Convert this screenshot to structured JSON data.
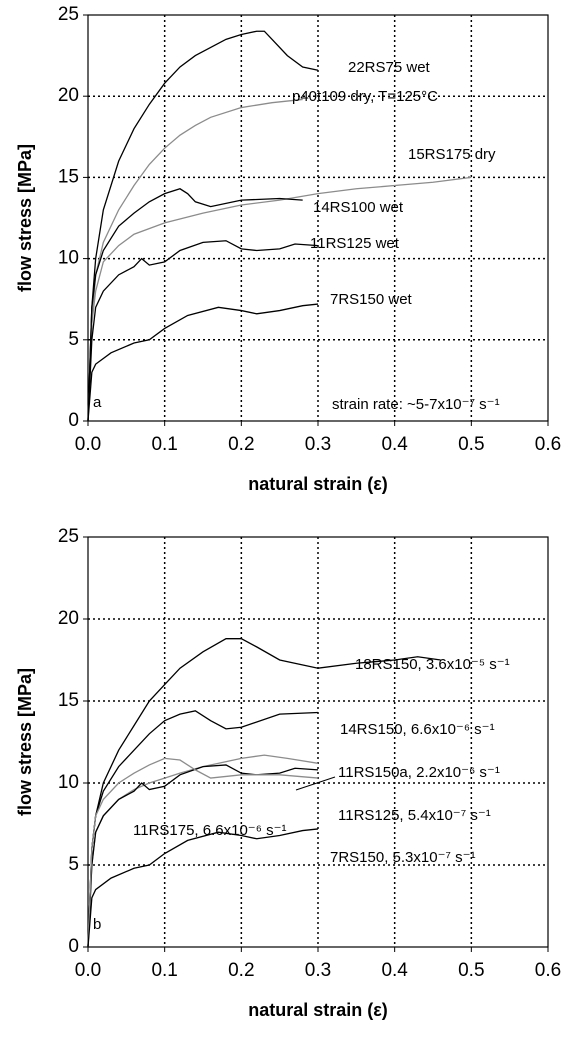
{
  "chart_data": [
    {
      "type": "line",
      "panel_label": "a",
      "annotation": "strain rate: ~5-7x10⁻⁷ s⁻¹",
      "x_label": "natural strain (ε)",
      "y_label": "flow stress [MPa]",
      "xlim": [
        0,
        0.6
      ],
      "ylim": [
        0,
        25
      ],
      "xticks": [
        {
          "value": 0,
          "label": "0.0"
        },
        0.1,
        0.2,
        0.3,
        0.4,
        0.5,
        0.6
      ],
      "yticks": [
        0,
        5,
        10,
        15,
        20,
        25
      ],
      "grid": true,
      "series": [
        {
          "name": "22RS75 wet",
          "color": "#000000",
          "x": [
            0,
            0.005,
            0.01,
            0.02,
            0.04,
            0.06,
            0.08,
            0.1,
            0.12,
            0.14,
            0.16,
            0.18,
            0.2,
            0.22,
            0.23,
            0.24,
            0.26,
            0.28,
            0.3
          ],
          "values": [
            0,
            7,
            10,
            13,
            16,
            18,
            19.5,
            20.8,
            21.8,
            22.5,
            23,
            23.5,
            23.8,
            24,
            24,
            23.5,
            22.5,
            21.8,
            21.6
          ]
        },
        {
          "name": "p40t109 dry, T=125°C",
          "color": "#8c8c8c",
          "x": [
            0,
            0.005,
            0.01,
            0.02,
            0.04,
            0.06,
            0.08,
            0.1,
            0.12,
            0.14,
            0.16,
            0.2,
            0.24,
            0.28
          ],
          "values": [
            0,
            6,
            9,
            11,
            13,
            14.5,
            15.8,
            16.8,
            17.6,
            18.2,
            18.7,
            19.3,
            19.6,
            19.8
          ]
        },
        {
          "name": "15RS175 dry",
          "color": "#8c8c8c",
          "x": [
            0,
            0.005,
            0.01,
            0.02,
            0.04,
            0.06,
            0.1,
            0.15,
            0.2,
            0.25,
            0.3,
            0.35,
            0.4,
            0.45,
            0.5
          ],
          "values": [
            0,
            6,
            8,
            9.8,
            10.8,
            11.5,
            12.2,
            12.8,
            13.3,
            13.6,
            14,
            14.3,
            14.5,
            14.7,
            15
          ]
        },
        {
          "name": "14RS100 wet",
          "color": "#000000",
          "x": [
            0,
            0.005,
            0.01,
            0.02,
            0.04,
            0.06,
            0.08,
            0.1,
            0.12,
            0.13,
            0.14,
            0.16,
            0.2,
            0.25,
            0.28
          ],
          "values": [
            0,
            7,
            9,
            10.5,
            12,
            12.8,
            13.5,
            14,
            14.3,
            14,
            13.5,
            13.2,
            13.6,
            13.7,
            13.6
          ]
        },
        {
          "name": "11RS125 wet",
          "color": "#000000",
          "x": [
            0,
            0.005,
            0.01,
            0.02,
            0.04,
            0.06,
            0.07,
            0.08,
            0.1,
            0.12,
            0.15,
            0.18,
            0.2,
            0.22,
            0.25,
            0.27,
            0.3
          ],
          "values": [
            0,
            5,
            7,
            8,
            9,
            9.5,
            10,
            9.6,
            9.8,
            10.5,
            11,
            11.1,
            10.6,
            10.5,
            10.6,
            10.9,
            10.8
          ]
        },
        {
          "name": "7RS150 wet",
          "color": "#000000",
          "x": [
            0,
            0.005,
            0.01,
            0.03,
            0.06,
            0.08,
            0.1,
            0.13,
            0.17,
            0.2,
            0.22,
            0.25,
            0.28,
            0.3
          ],
          "values": [
            0,
            3,
            3.5,
            4.2,
            4.8,
            5,
            5.7,
            6.5,
            7,
            6.8,
            6.6,
            6.8,
            7.1,
            7.2
          ]
        }
      ]
    },
    {
      "type": "line",
      "panel_label": "b",
      "x_label": "natural strain (ε)",
      "y_label": "flow stress [MPa]",
      "xlim": [
        0,
        0.6
      ],
      "ylim": [
        0,
        25
      ],
      "xticks": [
        {
          "value": 0,
          "label": "0.0"
        },
        0.1,
        0.2,
        0.3,
        0.4,
        0.5,
        0.6
      ],
      "yticks": [
        0,
        5,
        10,
        15,
        20,
        25
      ],
      "grid": true,
      "series": [
        {
          "name": "18RS150, 3.6x10⁻⁵ s⁻¹",
          "color": "#000000",
          "x": [
            0,
            0.005,
            0.01,
            0.02,
            0.04,
            0.06,
            0.08,
            0.1,
            0.12,
            0.15,
            0.18,
            0.2,
            0.22,
            0.25,
            0.3,
            0.35,
            0.4,
            0.43,
            0.46
          ],
          "values": [
            0,
            6,
            8,
            10,
            12,
            13.5,
            15,
            16,
            17,
            18,
            18.8,
            18.8,
            18.3,
            17.5,
            17,
            17.3,
            17.5,
            17.7,
            17.5
          ]
        },
        {
          "name": "14RS150, 6.6x10⁻⁶ s⁻¹",
          "color": "#000000",
          "x": [
            0,
            0.005,
            0.01,
            0.02,
            0.04,
            0.06,
            0.08,
            0.1,
            0.12,
            0.14,
            0.16,
            0.18,
            0.2,
            0.25,
            0.3
          ],
          "values": [
            0,
            6,
            8,
            9.5,
            11,
            12,
            13,
            13.8,
            14.2,
            14.4,
            13.8,
            13.3,
            13.4,
            14.2,
            14.3
          ]
        },
        {
          "name": "11RS150a, 2.2x10⁻⁶ s⁻¹",
          "color": "#8c8c8c",
          "x": [
            0,
            0.005,
            0.01,
            0.02,
            0.04,
            0.06,
            0.08,
            0.1,
            0.12,
            0.15,
            0.2,
            0.23,
            0.26,
            0.3
          ],
          "values": [
            0,
            5,
            7,
            8,
            9,
            9.6,
            10,
            10.3,
            10.6,
            11,
            11.5,
            11.7,
            11.5,
            11.2
          ]
        },
        {
          "name": "11RS125, 5.4x10⁻⁷ s⁻¹",
          "color": "#000000",
          "x": [
            0,
            0.005,
            0.01,
            0.02,
            0.04,
            0.06,
            0.07,
            0.08,
            0.1,
            0.12,
            0.15,
            0.18,
            0.2,
            0.22,
            0.25,
            0.27,
            0.3
          ],
          "values": [
            0,
            5,
            7,
            8,
            9,
            9.5,
            10,
            9.6,
            9.8,
            10.5,
            11,
            11.1,
            10.6,
            10.5,
            10.6,
            10.9,
            10.8
          ]
        },
        {
          "name": "11RS175, 6.6x10⁻⁶ s⁻¹",
          "color": "#8c8c8c",
          "x": [
            0,
            0.005,
            0.01,
            0.02,
            0.04,
            0.06,
            0.08,
            0.1,
            0.12,
            0.14,
            0.16,
            0.2,
            0.25,
            0.3
          ],
          "values": [
            0,
            6,
            8,
            9,
            10,
            10.6,
            11.1,
            11.5,
            11.4,
            10.8,
            10.3,
            10.5,
            10.5,
            10.3
          ]
        },
        {
          "name": "7RS150, 5.3x10⁻⁷ s⁻¹",
          "color": "#000000",
          "x": [
            0,
            0.005,
            0.01,
            0.03,
            0.06,
            0.08,
            0.1,
            0.13,
            0.17,
            0.2,
            0.22,
            0.25,
            0.28,
            0.3
          ],
          "values": [
            0,
            3,
            3.5,
            4.2,
            4.8,
            5,
            5.7,
            6.5,
            7,
            6.8,
            6.6,
            6.8,
            7.1,
            7.2
          ]
        }
      ]
    }
  ]
}
